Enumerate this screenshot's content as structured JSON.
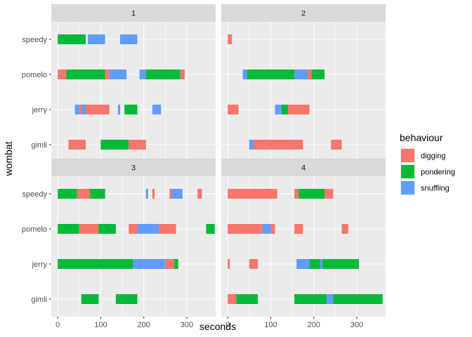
{
  "chart_data": {
    "type": "bar",
    "subtype": "faceted-timeline",
    "xlabel": "seconds",
    "ylabel": "wombat",
    "xlim": [
      -15,
      367
    ],
    "x_ticks": [
      0,
      100,
      200,
      300
    ],
    "categories": [
      "gimli",
      "jerry",
      "pomelo",
      "speedy"
    ],
    "legend": {
      "title": "behaviour",
      "position": "right",
      "items": [
        {
          "name": "digging",
          "color": "#F8766D"
        },
        {
          "name": "pondering",
          "color": "#00BA38"
        },
        {
          "name": "snuffling",
          "color": "#619CFF"
        }
      ]
    },
    "facets": [
      {
        "label": "1",
        "segments": [
          {
            "wombat": "speedy",
            "behaviour": "pondering",
            "start": 0,
            "end": 65
          },
          {
            "wombat": "speedy",
            "behaviour": "snuffling",
            "start": 70,
            "end": 110
          },
          {
            "wombat": "speedy",
            "behaviour": "snuffling",
            "start": 145,
            "end": 185
          },
          {
            "wombat": "pomelo",
            "behaviour": "digging",
            "start": 0,
            "end": 20
          },
          {
            "wombat": "pomelo",
            "behaviour": "pondering",
            "start": 20,
            "end": 110
          },
          {
            "wombat": "pomelo",
            "behaviour": "digging",
            "start": 110,
            "end": 120
          },
          {
            "wombat": "pomelo",
            "behaviour": "snuffling",
            "start": 120,
            "end": 160
          },
          {
            "wombat": "pomelo",
            "behaviour": "snuffling",
            "start": 190,
            "end": 205
          },
          {
            "wombat": "pomelo",
            "behaviour": "pondering",
            "start": 205,
            "end": 285
          },
          {
            "wombat": "pomelo",
            "behaviour": "digging",
            "start": 285,
            "end": 295
          },
          {
            "wombat": "jerry",
            "behaviour": "snuffling",
            "start": 40,
            "end": 50
          },
          {
            "wombat": "jerry",
            "behaviour": "digging",
            "start": 50,
            "end": 55
          },
          {
            "wombat": "jerry",
            "behaviour": "snuffling",
            "start": 55,
            "end": 65
          },
          {
            "wombat": "jerry",
            "behaviour": "digging",
            "start": 65,
            "end": 120
          },
          {
            "wombat": "jerry",
            "behaviour": "snuffling",
            "start": 140,
            "end": 145
          },
          {
            "wombat": "jerry",
            "behaviour": "pondering",
            "start": 155,
            "end": 185
          },
          {
            "wombat": "jerry",
            "behaviour": "snuffling",
            "start": 220,
            "end": 240
          },
          {
            "wombat": "gimli",
            "behaviour": "digging",
            "start": 25,
            "end": 65
          },
          {
            "wombat": "gimli",
            "behaviour": "pondering",
            "start": 100,
            "end": 165
          },
          {
            "wombat": "gimli",
            "behaviour": "digging",
            "start": 165,
            "end": 205
          }
        ]
      },
      {
        "label": "2",
        "segments": [
          {
            "wombat": "speedy",
            "behaviour": "digging",
            "start": 0,
            "end": 10
          },
          {
            "wombat": "pomelo",
            "behaviour": "snuffling",
            "start": 35,
            "end": 45
          },
          {
            "wombat": "pomelo",
            "behaviour": "pondering",
            "start": 45,
            "end": 155
          },
          {
            "wombat": "pomelo",
            "behaviour": "snuffling",
            "start": 155,
            "end": 185
          },
          {
            "wombat": "pomelo",
            "behaviour": "digging",
            "start": 185,
            "end": 195
          },
          {
            "wombat": "pomelo",
            "behaviour": "pondering",
            "start": 195,
            "end": 225
          },
          {
            "wombat": "jerry",
            "behaviour": "digging",
            "start": 0,
            "end": 25
          },
          {
            "wombat": "jerry",
            "behaviour": "snuffling",
            "start": 110,
            "end": 125
          },
          {
            "wombat": "jerry",
            "behaviour": "pondering",
            "start": 125,
            "end": 140
          },
          {
            "wombat": "jerry",
            "behaviour": "digging",
            "start": 140,
            "end": 190
          },
          {
            "wombat": "gimli",
            "behaviour": "snuffling",
            "start": 50,
            "end": 60
          },
          {
            "wombat": "gimli",
            "behaviour": "digging",
            "start": 60,
            "end": 175
          },
          {
            "wombat": "gimli",
            "behaviour": "digging",
            "start": 240,
            "end": 265
          }
        ]
      },
      {
        "label": "3",
        "segments": [
          {
            "wombat": "speedy",
            "behaviour": "pondering",
            "start": 0,
            "end": 45
          },
          {
            "wombat": "speedy",
            "behaviour": "digging",
            "start": 45,
            "end": 75
          },
          {
            "wombat": "speedy",
            "behaviour": "pondering",
            "start": 75,
            "end": 110
          },
          {
            "wombat": "speedy",
            "behaviour": "snuffling",
            "start": 205,
            "end": 210
          },
          {
            "wombat": "speedy",
            "behaviour": "digging",
            "start": 220,
            "end": 225
          },
          {
            "wombat": "speedy",
            "behaviour": "digging",
            "start": 260,
            "end": 265
          },
          {
            "wombat": "speedy",
            "behaviour": "snuffling",
            "start": 265,
            "end": 290
          },
          {
            "wombat": "speedy",
            "behaviour": "digging",
            "start": 325,
            "end": 335
          },
          {
            "wombat": "pomelo",
            "behaviour": "pondering",
            "start": 0,
            "end": 50
          },
          {
            "wombat": "pomelo",
            "behaviour": "digging",
            "start": 50,
            "end": 95
          },
          {
            "wombat": "pomelo",
            "behaviour": "pondering",
            "start": 95,
            "end": 135
          },
          {
            "wombat": "pomelo",
            "behaviour": "digging",
            "start": 165,
            "end": 185
          },
          {
            "wombat": "pomelo",
            "behaviour": "snuffling",
            "start": 185,
            "end": 235
          },
          {
            "wombat": "pomelo",
            "behaviour": "digging",
            "start": 235,
            "end": 275
          },
          {
            "wombat": "pomelo",
            "behaviour": "pondering",
            "start": 345,
            "end": 365
          },
          {
            "wombat": "jerry",
            "behaviour": "pondering",
            "start": 0,
            "end": 175
          },
          {
            "wombat": "jerry",
            "behaviour": "snuffling",
            "start": 175,
            "end": 250
          },
          {
            "wombat": "jerry",
            "behaviour": "digging",
            "start": 250,
            "end": 270
          },
          {
            "wombat": "jerry",
            "behaviour": "pondering",
            "start": 270,
            "end": 280
          },
          {
            "wombat": "gimli",
            "behaviour": "pondering",
            "start": 55,
            "end": 95
          },
          {
            "wombat": "gimli",
            "behaviour": "pondering",
            "start": 135,
            "end": 185
          }
        ]
      },
      {
        "label": "4",
        "segments": [
          {
            "wombat": "speedy",
            "behaviour": "digging",
            "start": 0,
            "end": 115
          },
          {
            "wombat": "speedy",
            "behaviour": "digging",
            "start": 155,
            "end": 165
          },
          {
            "wombat": "speedy",
            "behaviour": "pondering",
            "start": 165,
            "end": 225
          },
          {
            "wombat": "speedy",
            "behaviour": "digging",
            "start": 225,
            "end": 245
          },
          {
            "wombat": "pomelo",
            "behaviour": "digging",
            "start": 0,
            "end": 80
          },
          {
            "wombat": "pomelo",
            "behaviour": "snuffling",
            "start": 80,
            "end": 100
          },
          {
            "wombat": "pomelo",
            "behaviour": "digging",
            "start": 100,
            "end": 110
          },
          {
            "wombat": "pomelo",
            "behaviour": "digging",
            "start": 155,
            "end": 175
          },
          {
            "wombat": "pomelo",
            "behaviour": "digging",
            "start": 265,
            "end": 280
          },
          {
            "wombat": "jerry",
            "behaviour": "digging",
            "start": 0,
            "end": 5
          },
          {
            "wombat": "jerry",
            "behaviour": "digging",
            "start": 50,
            "end": 70
          },
          {
            "wombat": "jerry",
            "behaviour": "snuffling",
            "start": 160,
            "end": 190
          },
          {
            "wombat": "jerry",
            "behaviour": "pondering",
            "start": 190,
            "end": 215
          },
          {
            "wombat": "jerry",
            "behaviour": "snuffling",
            "start": 215,
            "end": 220
          },
          {
            "wombat": "jerry",
            "behaviour": "pondering",
            "start": 220,
            "end": 305
          },
          {
            "wombat": "gimli",
            "behaviour": "digging",
            "start": 0,
            "end": 20
          },
          {
            "wombat": "gimli",
            "behaviour": "pondering",
            "start": 20,
            "end": 70
          },
          {
            "wombat": "gimli",
            "behaviour": "pondering",
            "start": 155,
            "end": 230
          },
          {
            "wombat": "gimli",
            "behaviour": "snuffling",
            "start": 230,
            "end": 245
          },
          {
            "wombat": "gimli",
            "behaviour": "pondering",
            "start": 245,
            "end": 360
          }
        ]
      }
    ]
  }
}
